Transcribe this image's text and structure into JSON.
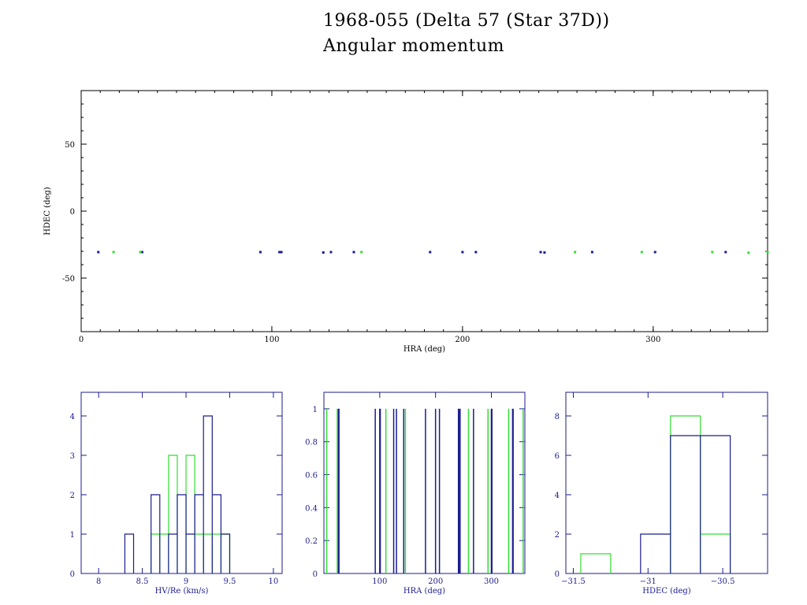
{
  "title": "1968-055 (Delta 57 (Star 37D))",
  "subtitle": "Angular momentum",
  "colors": {
    "blue": "#1c1c8f",
    "green": "#33dd33",
    "axis_top": "#000000",
    "axis_hist": "#1c1c8f"
  },
  "chart_data": [
    {
      "type": "scatter",
      "xlabel": "HRA (deg)",
      "ylabel": "HDEC (deg)",
      "xlim": [
        0,
        360
      ],
      "ylim": [
        -90,
        90
      ],
      "xticks": [
        0,
        100,
        200,
        300
      ],
      "yticks": [
        -50,
        0,
        50
      ],
      "series": [
        {
          "color": "blue",
          "points": [
            [
              9,
              -30.6
            ],
            [
              32,
              -30.6
            ],
            [
              94,
              -30.6
            ],
            [
              104,
              -30.6
            ],
            [
              105,
              -30.6
            ],
            [
              127,
              -30.9
            ],
            [
              131,
              -30.6
            ],
            [
              143,
              -30.6
            ],
            [
              183,
              -30.6
            ],
            [
              200,
              -30.6
            ],
            [
              207,
              -30.6
            ],
            [
              241,
              -30.6
            ],
            [
              243,
              -30.9
            ],
            [
              268,
              -30.6
            ],
            [
              301,
              -30.6
            ],
            [
              338,
              -30.6
            ]
          ]
        },
        {
          "color": "green",
          "points": [
            [
              17,
              -30.6
            ],
            [
              31,
              -30.6
            ],
            [
              147,
              -30.6
            ],
            [
              259,
              -30.6
            ],
            [
              294,
              -30.6
            ],
            [
              331,
              -30.6
            ],
            [
              350,
              -31.1
            ],
            [
              360,
              -30.6
            ]
          ]
        }
      ]
    },
    {
      "type": "histogram",
      "xlabel": "HV/Re (km/s)",
      "xlim": [
        7.8,
        10.1
      ],
      "ylim": [
        0,
        4.6
      ],
      "xticks": [
        8,
        8.5,
        9,
        9.5,
        10
      ],
      "xticklabels": [
        "8",
        "8.5",
        "9",
        "9.5",
        "10"
      ],
      "yticks": [
        0,
        1,
        2,
        3,
        4
      ],
      "yticklabels": [
        "0",
        "1",
        "2",
        "3",
        "4"
      ],
      "series": [
        {
          "color": "green",
          "edges": [
            8.3,
            8.4,
            8.5,
            8.6,
            8.7,
            8.8,
            8.9,
            9.0,
            9.1,
            9.2,
            9.3,
            9.4,
            9.5
          ],
          "counts": [
            0,
            0,
            0,
            1,
            1,
            3,
            0,
            3,
            1,
            1,
            1,
            1
          ]
        },
        {
          "color": "blue",
          "edges": [
            8.3,
            8.4,
            8.5,
            8.6,
            8.7,
            8.8,
            8.9,
            9.0,
            9.1,
            9.2,
            9.3,
            9.4,
            9.5
          ],
          "counts": [
            1,
            0,
            0,
            2,
            0,
            1,
            2,
            1,
            2,
            4,
            2,
            1
          ]
        }
      ]
    },
    {
      "type": "histogram",
      "xlabel": "HRA (deg)",
      "xlim": [
        0,
        360
      ],
      "ylim": [
        0,
        1.1
      ],
      "xticks": [
        100,
        200,
        300
      ],
      "xticklabels": [
        "100",
        "200",
        "300"
      ],
      "yticks": [
        0,
        0.2,
        0.4,
        0.6,
        0.8,
        1
      ],
      "yticklabels": [
        "0",
        "0.2",
        "0.4",
        "0.6",
        "0.8",
        "1"
      ],
      "series": [
        {
          "color": "green",
          "spikes": [
            5,
            24,
            111,
            146,
            259,
            294,
            331,
            357
          ],
          "height": 1
        },
        {
          "color": "blue",
          "spikes": [
            26,
            27,
            92,
            100,
            101,
            125,
            130,
            143,
            182,
            200,
            207,
            241,
            242,
            244,
            268,
            300,
            301,
            338,
            339
          ],
          "height": 1
        }
      ]
    },
    {
      "type": "histogram",
      "xlabel": "HDEC (deg)",
      "xlim": [
        -31.55,
        -30.2
      ],
      "ylim": [
        0,
        9.2
      ],
      "xticks": [
        -31.5,
        -31,
        -30.5
      ],
      "xticklabels": [
        "−31.5",
        "−31",
        "−30.5"
      ],
      "yticks": [
        0,
        2,
        4,
        6,
        8
      ],
      "yticklabels": [
        "0",
        "2",
        "4",
        "6",
        "8"
      ],
      "series": [
        {
          "color": "green",
          "edges": [
            -31.45,
            -31.25,
            -31.05,
            -30.85,
            -30.65,
            -30.45
          ],
          "counts": [
            1,
            0,
            0,
            8,
            2
          ]
        },
        {
          "color": "blue",
          "edges": [
            -31.45,
            -31.25,
            -31.05,
            -30.85,
            -30.65,
            -30.45
          ],
          "counts": [
            0,
            0,
            2,
            7,
            7
          ]
        }
      ]
    }
  ]
}
